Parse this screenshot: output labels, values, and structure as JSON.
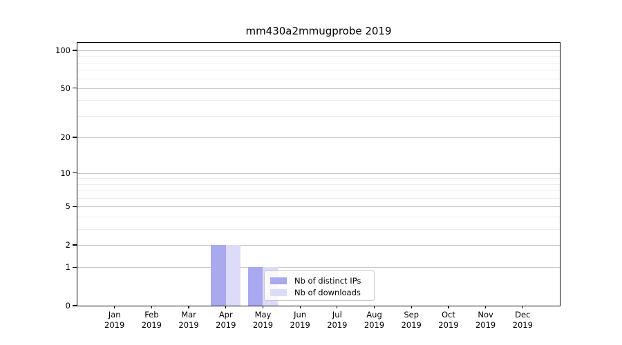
{
  "title": "mm430a2mmugprobe 2019",
  "chart_data": {
    "type": "bar",
    "title": "mm430a2mmugprobe 2019",
    "categories": [
      "Jan",
      "Feb",
      "Mar",
      "Apr",
      "May",
      "Jun",
      "Jul",
      "Aug",
      "Sep",
      "Oct",
      "Nov",
      "Dec"
    ],
    "category_year": "2019",
    "series": [
      {
        "name": "Nb of distinct IPs",
        "color": "#a9a9f0",
        "values": [
          0,
          0,
          0,
          2,
          1,
          0,
          0,
          0,
          0,
          0,
          0,
          0
        ]
      },
      {
        "name": "Nb of downloads",
        "color": "#dcdcf8",
        "values": [
          0,
          0,
          0,
          2,
          1,
          0,
          0,
          0,
          0,
          0,
          0,
          0
        ]
      }
    ],
    "y_axis": {
      "scale": "log1p",
      "min": 0,
      "max": 114,
      "major_ticks": [
        0,
        1,
        2,
        5,
        10,
        20,
        50,
        100
      ],
      "minor_ticks": [
        3,
        4,
        6,
        7,
        8,
        9,
        30,
        40,
        60,
        70,
        80,
        90
      ]
    },
    "x_axis": {
      "tick_slots": 13
    },
    "grid": {
      "major_color": "#c6c6c6",
      "minor_color": "#ececec"
    },
    "legend": {
      "position": "inside-lower-left-of-center",
      "entries": [
        "Nb of distinct IPs",
        "Nb of downloads"
      ]
    },
    "colors": {
      "frame": "#000000",
      "background": "#ffffff"
    }
  }
}
